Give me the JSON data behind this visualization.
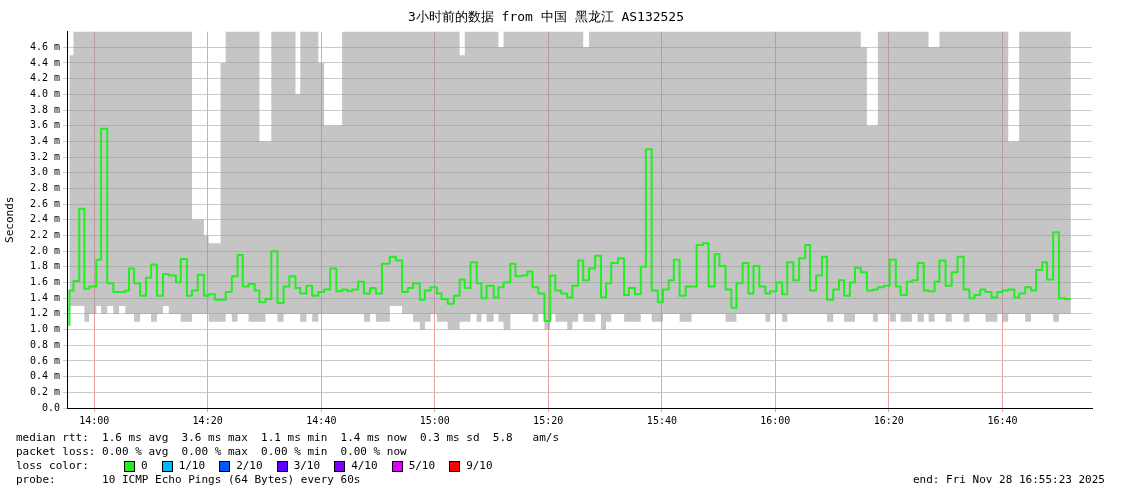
{
  "chart_data": {
    "type": "step",
    "title": "3小时前的数据 from 中国 黑龙江 AS132525",
    "ylabel": "Seconds",
    "xlim": [
      13.92,
      16.93
    ],
    "ylim": [
      0,
      4.8
    ],
    "xticks": [
      {
        "value": 14,
        "label": "14:00"
      },
      {
        "value": 14.333,
        "label": "14:20"
      },
      {
        "value": 14.667,
        "label": "14:40"
      },
      {
        "value": 15,
        "label": "15:00"
      },
      {
        "value": 15.333,
        "label": "15:20"
      },
      {
        "value": 15.667,
        "label": "15:40"
      },
      {
        "value": 16,
        "label": "16:00"
      },
      {
        "value": 16.333,
        "label": "16:20"
      },
      {
        "value": 16.667,
        "label": "16:40"
      }
    ],
    "yticks": [
      {
        "value": 0,
        "label": "0.0"
      },
      {
        "value": 0.2,
        "label": "0.2 m"
      },
      {
        "value": 0.4,
        "label": "0.4 m"
      },
      {
        "value": 0.6,
        "label": "0.6 m"
      },
      {
        "value": 0.8,
        "label": "0.8 m"
      },
      {
        "value": 1.0,
        "label": "1.0 m"
      },
      {
        "value": 1.2,
        "label": "1.2 m"
      },
      {
        "value": 1.4,
        "label": "1.4 m"
      },
      {
        "value": 1.6,
        "label": "1.6 m"
      },
      {
        "value": 1.8,
        "label": "1.8 m"
      },
      {
        "value": 2.0,
        "label": "2.0 m"
      },
      {
        "value": 2.2,
        "label": "2.2 m"
      },
      {
        "value": 2.4,
        "label": "2.4 m"
      },
      {
        "value": 2.6,
        "label": "2.6 m"
      },
      {
        "value": 2.8,
        "label": "2.8 m"
      },
      {
        "value": 3.0,
        "label": "3.0 m"
      },
      {
        "value": 3.2,
        "label": "3.2 m"
      },
      {
        "value": 3.4,
        "label": "3.4 m"
      },
      {
        "value": 3.6,
        "label": "3.6 m"
      },
      {
        "value": 3.8,
        "label": "3.8 m"
      },
      {
        "value": 4.0,
        "label": "4.0 m"
      },
      {
        "value": 4.2,
        "label": "4.2 m"
      },
      {
        "value": 4.4,
        "label": "4.4 m"
      },
      {
        "value": 4.6,
        "label": "4.6 m"
      }
    ],
    "grid": true,
    "legend": false,
    "line_style": "solid",
    "x": [
      13.927,
      13.939,
      13.956,
      13.971,
      13.985,
      14.006,
      14.02,
      14.038,
      14.056,
      14.073,
      14.091,
      14.102,
      14.117,
      14.135,
      14.152,
      14.167,
      14.184,
      14.202,
      14.219,
      14.24,
      14.254,
      14.272,
      14.287,
      14.304,
      14.322,
      14.336,
      14.354,
      14.371,
      14.386,
      14.404,
      14.421,
      14.436,
      14.453,
      14.471,
      14.485,
      14.503,
      14.52,
      14.538,
      14.556,
      14.573,
      14.591,
      14.605,
      14.623,
      14.64,
      14.658,
      14.675,
      14.693,
      14.711,
      14.728,
      14.743,
      14.757,
      14.775,
      14.792,
      14.81,
      14.827,
      14.845,
      14.868,
      14.886,
      14.904,
      14.921,
      14.936,
      14.956,
      14.971,
      14.988,
      15.006,
      15.02,
      15.038,
      15.056,
      15.073,
      15.088,
      15.105,
      15.123,
      15.137,
      15.152,
      15.173,
      15.187,
      15.202,
      15.222,
      15.237,
      15.254,
      15.272,
      15.287,
      15.304,
      15.322,
      15.339,
      15.354,
      15.371,
      15.389,
      15.404,
      15.421,
      15.436,
      15.453,
      15.471,
      15.488,
      15.503,
      15.518,
      15.538,
      15.556,
      15.57,
      15.588,
      15.605,
      15.62,
      15.637,
      15.655,
      15.67,
      15.687,
      15.702,
      15.719,
      15.737,
      15.754,
      15.769,
      15.787,
      15.804,
      15.822,
      15.836,
      15.854,
      15.871,
      15.886,
      15.904,
      15.921,
      15.936,
      15.953,
      15.971,
      15.985,
      16.003,
      16.02,
      16.035,
      16.053,
      16.07,
      16.088,
      16.102,
      16.12,
      16.137,
      16.152,
      16.17,
      16.187,
      16.202,
      16.219,
      16.234,
      16.251,
      16.269,
      16.287,
      16.301,
      16.319,
      16.336,
      16.354,
      16.368,
      16.386,
      16.401,
      16.418,
      16.436,
      16.45,
      16.468,
      16.482,
      16.5,
      16.518,
      16.535,
      16.553,
      16.57,
      16.585,
      16.602,
      16.617,
      16.635,
      16.652,
      16.667,
      16.684,
      16.702,
      16.716,
      16.734,
      16.751,
      16.766,
      16.784,
      16.798,
      16.816,
      16.833,
      16.851,
      16.868
    ],
    "series": [
      {
        "color": "#20f020",
        "values": [
          1.05,
          1.5,
          1.62,
          2.54,
          1.52,
          1.55,
          1.89,
          3.56,
          1.59,
          1.48,
          1.48,
          1.5,
          1.78,
          1.59,
          1.43,
          1.66,
          1.83,
          1.43,
          1.71,
          1.69,
          1.6,
          1.9,
          1.43,
          1.5,
          1.7,
          1.43,
          1.45,
          1.38,
          1.38,
          1.48,
          1.68,
          1.95,
          1.55,
          1.58,
          1.5,
          1.35,
          1.39,
          2.0,
          1.34,
          1.55,
          1.68,
          1.53,
          1.46,
          1.56,
          1.43,
          1.48,
          1.51,
          1.78,
          1.49,
          1.51,
          1.49,
          1.51,
          1.61,
          1.46,
          1.53,
          1.46,
          1.84,
          1.93,
          1.88,
          1.48,
          1.53,
          1.59,
          1.38,
          1.5,
          1.54,
          1.46,
          1.39,
          1.33,
          1.43,
          1.64,
          1.53,
          1.86,
          1.59,
          1.4,
          1.56,
          1.41,
          1.54,
          1.6,
          1.84,
          1.68,
          1.69,
          1.74,
          1.54,
          1.46,
          1.11,
          1.69,
          1.5,
          1.46,
          1.41,
          1.56,
          1.88,
          1.63,
          1.78,
          1.94,
          1.41,
          1.59,
          1.85,
          1.91,
          1.44,
          1.53,
          1.45,
          1.8,
          3.3,
          1.5,
          1.35,
          1.51,
          1.63,
          1.89,
          1.43,
          1.55,
          1.55,
          2.08,
          2.1,
          1.55,
          1.96,
          1.81,
          1.51,
          1.28,
          1.59,
          1.85,
          1.46,
          1.81,
          1.55,
          1.46,
          1.49,
          1.6,
          1.45,
          1.86,
          1.63,
          1.91,
          2.08,
          1.5,
          1.69,
          1.93,
          1.38,
          1.51,
          1.63,
          1.43,
          1.6,
          1.79,
          1.73,
          1.5,
          1.51,
          1.54,
          1.56,
          1.89,
          1.55,
          1.44,
          1.61,
          1.63,
          1.85,
          1.5,
          1.49,
          1.61,
          1.88,
          1.56,
          1.73,
          1.93,
          1.51,
          1.4,
          1.44,
          1.51,
          1.48,
          1.41,
          1.48,
          1.5,
          1.51,
          1.41,
          1.46,
          1.54,
          1.5,
          1.76,
          1.86,
          1.64,
          2.24,
          1.4,
          1.39
        ],
        "lower": [
          1.05,
          1.3,
          1.3,
          1.3,
          1.1,
          1.2,
          1.3,
          1.2,
          1.3,
          1.2,
          1.3,
          1.2,
          1.2,
          1.1,
          1.2,
          1.2,
          1.1,
          1.2,
          1.3,
          1.2,
          1.2,
          1.1,
          1.1,
          1.2,
          1.2,
          1.2,
          1.1,
          1.1,
          1.1,
          1.2,
          1.1,
          1.2,
          1.2,
          1.1,
          1.1,
          1.1,
          1.2,
          1.2,
          1.1,
          1.2,
          1.2,
          1.2,
          1.1,
          1.2,
          1.1,
          1.2,
          1.2,
          1.2,
          1.2,
          1.2,
          1.2,
          1.2,
          1.2,
          1.1,
          1.2,
          1.1,
          1.1,
          1.3,
          1.3,
          1.2,
          1.2,
          1.1,
          1.0,
          1.1,
          1.2,
          1.1,
          1.1,
          1.0,
          1.0,
          1.1,
          1.1,
          1.2,
          1.1,
          1.2,
          1.1,
          1.2,
          1.1,
          1.0,
          1.2,
          1.2,
          1.2,
          1.2,
          1.1,
          1.2,
          1.0,
          1.2,
          1.1,
          1.1,
          1.0,
          1.1,
          1.2,
          1.1,
          1.1,
          1.2,
          1.0,
          1.1,
          1.2,
          1.2,
          1.1,
          1.1,
          1.1,
          1.2,
          1.2,
          1.1,
          1.1,
          1.2,
          1.2,
          1.2,
          1.1,
          1.1,
          1.2,
          1.2,
          1.2,
          1.2,
          1.2,
          1.2,
          1.1,
          1.1,
          1.2,
          1.2,
          1.2,
          1.2,
          1.2,
          1.1,
          1.2,
          1.2,
          1.1,
          1.2,
          1.2,
          1.2,
          1.2,
          1.2,
          1.2,
          1.2,
          1.1,
          1.2,
          1.2,
          1.1,
          1.1,
          1.2,
          1.2,
          1.2,
          1.1,
          1.2,
          1.2,
          1.1,
          1.2,
          1.1,
          1.1,
          1.2,
          1.1,
          1.2,
          1.1,
          1.2,
          1.2,
          1.1,
          1.2,
          1.2,
          1.1,
          1.2,
          1.2,
          1.2,
          1.1,
          1.1,
          1.2,
          1.1,
          1.2,
          1.2,
          1.2,
          1.1,
          1.2,
          1.2,
          1.2,
          1.2,
          1.1,
          1.2,
          1.2
        ],
        "upper": [
          4.5,
          4.5,
          4.8,
          4.8,
          4.8,
          4.8,
          4.8,
          4.8,
          4.8,
          4.8,
          4.8,
          4.8,
          4.8,
          4.8,
          4.8,
          4.8,
          4.8,
          4.8,
          4.8,
          4.8,
          4.8,
          4.8,
          4.8,
          2.4,
          2.4,
          2.2,
          2.1,
          2.1,
          4.4,
          4.8,
          4.8,
          4.8,
          4.8,
          4.8,
          4.8,
          3.4,
          3.4,
          4.8,
          4.8,
          4.8,
          4.8,
          4.0,
          4.8,
          4.8,
          4.8,
          4.4,
          3.6,
          3.6,
          3.6,
          4.8,
          4.8,
          4.8,
          4.8,
          4.8,
          4.8,
          4.8,
          4.8,
          4.8,
          4.8,
          4.8,
          4.8,
          4.8,
          4.8,
          4.8,
          4.8,
          4.8,
          4.8,
          4.8,
          4.8,
          4.5,
          4.8,
          4.8,
          4.8,
          4.8,
          4.8,
          4.8,
          4.6,
          4.8,
          4.8,
          4.8,
          4.8,
          4.8,
          4.8,
          4.8,
          4.8,
          4.8,
          4.8,
          4.8,
          4.8,
          4.8,
          4.8,
          4.6,
          4.8,
          4.8,
          4.8,
          4.8,
          4.8,
          4.8,
          4.8,
          4.8,
          4.8,
          4.8,
          4.8,
          4.8,
          4.8,
          4.8,
          4.8,
          4.8,
          4.8,
          4.8,
          4.8,
          4.8,
          4.8,
          4.8,
          4.8,
          4.8,
          4.8,
          4.8,
          4.8,
          4.8,
          4.8,
          4.8,
          4.8,
          4.8,
          4.8,
          4.8,
          4.8,
          4.8,
          4.8,
          4.8,
          4.8,
          4.8,
          4.8,
          4.8,
          4.8,
          4.8,
          4.8,
          4.8,
          4.8,
          4.8,
          4.6,
          3.6,
          3.6,
          4.8,
          4.8,
          4.8,
          4.8,
          4.8,
          4.8,
          4.8,
          4.8,
          4.8,
          4.6,
          4.6,
          4.8,
          4.8,
          4.8,
          4.8,
          4.8,
          4.8,
          4.8,
          4.8,
          4.8,
          4.8,
          4.8,
          4.8,
          3.4,
          3.4,
          4.8,
          4.8,
          4.8,
          4.8,
          4.8,
          4.8,
          4.8,
          4.8,
          4.8
        ]
      }
    ],
    "annotations": [
      "median rtt:  1.6 ms avg  3.6 ms max  1.1 ms min  1.4 ms now  0.3 ms sd  5.8   am/s",
      "packet loss: 0.00 % avg  0.00 % max  0.00 % min  0.00 % now",
      "loss color:",
      "0",
      "1/10",
      "2/10",
      "3/10",
      "4/10",
      "5/10",
      "9/10",
      "probe:       10 ICMP Echo Pings (64 Bytes) every 60s",
      "end: Fri Nov 28 16:55:23 2025"
    ]
  }
}
